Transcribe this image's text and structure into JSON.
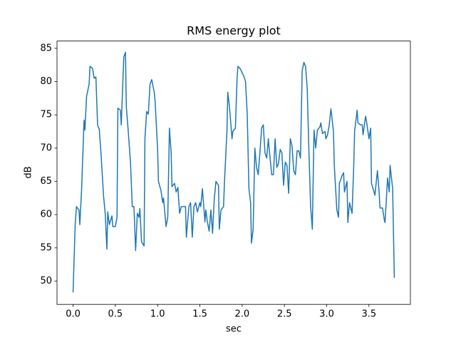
{
  "chart_data": {
    "type": "line",
    "title": "RMS energy plot",
    "x_label": "sec",
    "y_label": "dB",
    "color": "#1f77b4",
    "x": [
      0,
      0.025,
      0.04,
      0.07,
      0.08,
      0.1,
      0.13,
      0.14,
      0.16,
      0.19,
      0.2,
      0.23,
      0.25,
      0.27,
      0.29,
      0.31,
      0.33,
      0.36,
      0.38,
      0.4,
      0.41,
      0.43,
      0.46,
      0.47,
      0.5,
      0.52,
      0.53,
      0.56,
      0.57,
      0.6,
      0.62,
      0.63,
      0.65,
      0.68,
      0.7,
      0.72,
      0.74,
      0.76,
      0.78,
      0.79,
      0.81,
      0.84,
      0.85,
      0.87,
      0.89,
      0.91,
      0.93,
      0.96,
      0.97,
      1.0,
      1.01,
      1.04,
      1.06,
      1.07,
      1.1,
      1.12,
      1.14,
      1.16,
      1.17,
      1.2,
      1.22,
      1.24,
      1.26,
      1.28,
      1.31,
      1.33,
      1.34,
      1.37,
      1.39,
      1.41,
      1.43,
      1.45,
      1.47,
      1.5,
      1.51,
      1.53,
      1.56,
      1.57,
      1.59,
      1.61,
      1.63,
      1.65,
      1.67,
      1.69,
      1.72,
      1.73,
      1.75,
      1.78,
      1.79,
      1.82,
      1.83,
      1.85,
      1.88,
      1.89,
      1.92,
      1.94,
      1.95,
      1.98,
      2.0,
      2.02,
      2.04,
      2.06,
      2.08,
      2.1,
      2.11,
      2.13,
      2.15,
      2.17,
      2.19,
      2.21,
      2.23,
      2.25,
      2.27,
      2.29,
      2.31,
      2.32,
      2.35,
      2.37,
      2.39,
      2.41,
      2.43,
      2.45,
      2.47,
      2.49,
      2.51,
      2.53,
      2.55,
      2.57,
      2.59,
      2.61,
      2.63,
      2.65,
      2.67,
      2.69,
      2.71,
      2.73,
      2.75,
      2.77,
      2.79,
      2.81,
      2.83,
      2.85,
      2.87,
      2.89,
      2.92,
      2.93,
      2.95,
      2.98,
      2.99,
      3.01,
      3.03,
      3.05,
      3.08,
      3.09,
      3.12,
      3.14,
      3.15,
      3.18,
      3.2,
      3.21,
      3.24,
      3.25,
      3.27,
      3.3,
      3.32,
      3.33,
      3.36,
      3.37,
      3.4,
      3.42,
      3.43,
      3.46,
      3.47,
      3.5,
      3.52,
      3.53,
      3.56,
      3.57,
      3.6,
      3.62,
      3.63,
      3.66,
      3.68,
      3.69,
      3.72,
      3.74,
      3.75,
      3.78,
      3.8
    ],
    "values": [
      48.3,
      58.5,
      61.2,
      60.7,
      58.5,
      63.5,
      74.2,
      72.7,
      77.8,
      79.6,
      82.3,
      82.0,
      80.5,
      80.7,
      73.5,
      72.8,
      69.3,
      62.9,
      60.2,
      54.8,
      60.4,
      58.5,
      59.8,
      58.2,
      58.2,
      59.6,
      76.0,
      75.7,
      73.5,
      83.7,
      84.4,
      76.2,
      73.0,
      67.7,
      61.2,
      61.2,
      54.6,
      60.2,
      59.6,
      60.9,
      55.9,
      55.3,
      71.4,
      75.5,
      75.1,
      79.6,
      80.3,
      78.4,
      77.1,
      69.8,
      65.0,
      63.6,
      61.8,
      62.5,
      58.2,
      59.6,
      73.0,
      69.3,
      64.2,
      64.7,
      63.4,
      64.1,
      60.2,
      61.2,
      61.2,
      61.2,
      56.6,
      61.2,
      61.8,
      56.6,
      61.2,
      61.8,
      60.4,
      61.8,
      61.2,
      63.9,
      58.9,
      60.7,
      58.8,
      57.5,
      60.7,
      57.2,
      62.3,
      65.0,
      64.4,
      57.8,
      60.7,
      61.2,
      64.7,
      72.5,
      78.4,
      76.2,
      71.4,
      72.5,
      73.0,
      80.5,
      82.3,
      81.9,
      81.3,
      80.8,
      80.0,
      75.1,
      63.9,
      61.8,
      55.7,
      57.8,
      70.0,
      67.1,
      66.0,
      69.3,
      73.0,
      73.5,
      69.3,
      68.5,
      71.4,
      69.8,
      66.0,
      66.0,
      71.4,
      67.1,
      67.7,
      69.8,
      69.3,
      64.4,
      67.9,
      67.4,
      63.2,
      71.4,
      70.3,
      66.6,
      66.0,
      69.6,
      69.6,
      68.5,
      81.6,
      82.9,
      82.3,
      78.9,
      69.3,
      61.2,
      57.8,
      72.7,
      70.0,
      72.7,
      73.2,
      73.8,
      72.2,
      72.5,
      71.4,
      72.0,
      73.5,
      75.9,
      72.5,
      67.4,
      60.7,
      59.6,
      64.7,
      65.8,
      66.3,
      63.4,
      65.0,
      58.8,
      61.8,
      60.2,
      67.4,
      72.5,
      75.7,
      73.8,
      73.5,
      73.5,
      72.0,
      74.8,
      74.1,
      71.4,
      73.0,
      64.7,
      63.4,
      62.9,
      66.6,
      63.4,
      61.0,
      61.0,
      59.3,
      58.8,
      65.5,
      63.4,
      67.4,
      63.9,
      50.5
    ],
    "xlim": [
      -0.19,
      3.99
    ],
    "ylim": [
      46.5,
      86.1
    ],
    "xticks": [
      {
        "value": 0,
        "label": "0.0"
      },
      0.5,
      {
        "value": 1,
        "label": "1.0"
      },
      1.5,
      {
        "value": 2,
        "label": "2.0"
      },
      2.5,
      {
        "value": 3,
        "label": "3.0"
      },
      3.5
    ],
    "yticks": [
      50,
      55,
      60,
      65,
      70,
      75,
      80,
      85
    ]
  }
}
